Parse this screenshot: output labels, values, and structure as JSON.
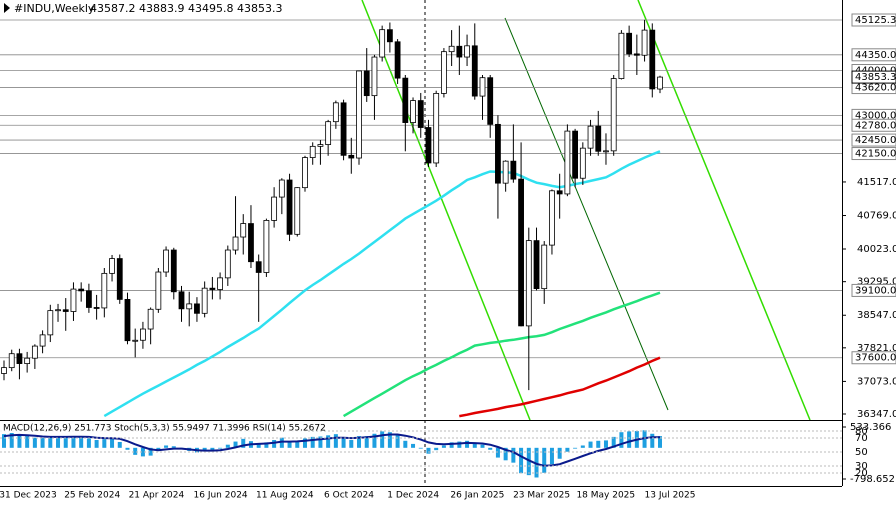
{
  "chart_data": {
    "type": "candlestick",
    "title": "#INDU,Weekly",
    "ohlc_text": "43587.2 43883.9 43495.8 43853.3",
    "ylim": [
      36213,
      45571
    ],
    "yticks": [
      {
        "value": 41517,
        "label": "41517.0"
      },
      {
        "value": 40769,
        "label": "40769.0"
      },
      {
        "value": 40023,
        "label": "40023.0"
      },
      {
        "value": 39295,
        "label": "39295.0"
      },
      {
        "value": 38547,
        "label": "38547.0"
      },
      {
        "value": 37821,
        "label": "37821.0"
      },
      {
        "value": 37073,
        "label": "37073.0"
      },
      {
        "value": 36347,
        "label": "36347.0"
      }
    ],
    "levels": [
      {
        "value": 45125.3,
        "label": "45125.3"
      },
      {
        "value": 44350,
        "label": "44350.0"
      },
      {
        "value": 44000,
        "label": "44000.0"
      },
      {
        "value": 43620,
        "label": "43620.0"
      },
      {
        "value": 43000,
        "label": "43000.0"
      },
      {
        "value": 42780,
        "label": "42780.0"
      },
      {
        "value": 42450,
        "label": "42450.0"
      },
      {
        "value": 42150,
        "label": "42150.0"
      },
      {
        "value": 39100,
        "label": "39100.0"
      },
      {
        "value": 37600,
        "label": "37600.0"
      }
    ],
    "x_labels": [
      "31 Dec 2023",
      "25 Feb 2024",
      "21 Apr 2024",
      "16 Jun 2024",
      "11 Aug 2024",
      "6 Oct 2024",
      "1 Dec 2024",
      "26 Jan 2025",
      "23 Mar 2025",
      "18 May 2025",
      "13 Jul 2025"
    ],
    "candles": [
      [
        37250,
        37540,
        37100,
        37380
      ],
      [
        37380,
        37780,
        37300,
        37690
      ],
      [
        37690,
        37800,
        37120,
        37470
      ],
      [
        37470,
        37730,
        37270,
        37590
      ],
      [
        37590,
        37900,
        37350,
        37860
      ],
      [
        37860,
        38210,
        37700,
        38110
      ],
      [
        38110,
        38780,
        37950,
        38650
      ],
      [
        38650,
        38800,
        38400,
        38670
      ],
      [
        38670,
        38930,
        38200,
        38630
      ],
      [
        38630,
        39280,
        38420,
        39130
      ],
      [
        39130,
        39280,
        38850,
        39090
      ],
      [
        39090,
        39250,
        38600,
        38720
      ],
      [
        38720,
        39000,
        38450,
        38710
      ],
      [
        38710,
        39600,
        38500,
        39480
      ],
      [
        39480,
        39890,
        39300,
        39810
      ],
      [
        39810,
        39900,
        38800,
        38900
      ],
      [
        38900,
        39050,
        37900,
        37980
      ],
      [
        37980,
        38250,
        37610,
        37990
      ],
      [
        37990,
        38400,
        37800,
        38240
      ],
      [
        38240,
        38720,
        37900,
        38680
      ],
      [
        38680,
        39600,
        38600,
        39510
      ],
      [
        39510,
        40080,
        39400,
        40000
      ],
      [
        40000,
        40050,
        38900,
        39070
      ],
      [
        39070,
        39200,
        38400,
        38690
      ],
      [
        38690,
        39070,
        38300,
        38800
      ],
      [
        38800,
        38950,
        38400,
        38590
      ],
      [
        38590,
        39300,
        38500,
        39150
      ],
      [
        39150,
        39400,
        38900,
        39120
      ],
      [
        39120,
        39500,
        38900,
        39380
      ],
      [
        39380,
        40100,
        39200,
        40000
      ],
      [
        40000,
        41200,
        39900,
        40290
      ],
      [
        40290,
        40800,
        39900,
        40590
      ],
      [
        40590,
        41000,
        39600,
        39740
      ],
      [
        39740,
        39900,
        38400,
        39500
      ],
      [
        39500,
        40700,
        39400,
        40660
      ],
      [
        40660,
        41400,
        40500,
        41180
      ],
      [
        41180,
        41600,
        40800,
        41560
      ],
      [
        41560,
        41700,
        40200,
        40350
      ],
      [
        40350,
        41400,
        40300,
        41390
      ],
      [
        41390,
        42100,
        41300,
        42060
      ],
      [
        42060,
        42400,
        41900,
        42310
      ],
      [
        42310,
        42450,
        41900,
        42350
      ],
      [
        42350,
        42900,
        42100,
        42860
      ],
      [
        42860,
        43330,
        42700,
        43280
      ],
      [
        43280,
        43350,
        42000,
        42110
      ],
      [
        42110,
        42500,
        41700,
        42050
      ],
      [
        42050,
        44000,
        41900,
        43990
      ],
      [
        43990,
        44500,
        43300,
        43440
      ],
      [
        43440,
        44350,
        42900,
        44300
      ],
      [
        44300,
        45000,
        44200,
        44910
      ],
      [
        44910,
        45070,
        44400,
        44640
      ],
      [
        44640,
        44700,
        43700,
        43830
      ],
      [
        43830,
        43900,
        42200,
        42840
      ],
      [
        42840,
        43400,
        42600,
        43330
      ],
      [
        43330,
        43500,
        42500,
        42730
      ],
      [
        42730,
        42900,
        41850,
        41940
      ],
      [
        41940,
        43550,
        41850,
        43490
      ],
      [
        43490,
        44500,
        43400,
        44420
      ],
      [
        44420,
        44900,
        44100,
        44540
      ],
      [
        44540,
        45000,
        43900,
        44300
      ],
      [
        44300,
        44800,
        44100,
        44550
      ],
      [
        44550,
        45050,
        43350,
        43430
      ],
      [
        43430,
        43900,
        42900,
        43840
      ],
      [
        43840,
        43900,
        42500,
        42800
      ],
      [
        42800,
        43000,
        40700,
        41490
      ],
      [
        41490,
        42000,
        41300,
        41980
      ],
      [
        41980,
        42800,
        41500,
        41580
      ],
      [
        41580,
        42400,
        38300,
        38310
      ],
      [
        38310,
        40500,
        36880,
        40210
      ],
      [
        40210,
        40500,
        39100,
        39140
      ],
      [
        39140,
        40200,
        38800,
        40110
      ],
      [
        40110,
        41350,
        39900,
        41320
      ],
      [
        41320,
        41700,
        40700,
        41250
      ],
      [
        41250,
        42800,
        41200,
        42650
      ],
      [
        42650,
        42700,
        41400,
        41600
      ],
      [
        41600,
        42400,
        41450,
        42270
      ],
      [
        42270,
        42900,
        42100,
        42760
      ],
      [
        42760,
        43100,
        42100,
        42200
      ],
      [
        42200,
        42600,
        41900,
        42210
      ],
      [
        42210,
        43900,
        42100,
        43820
      ],
      [
        43820,
        44900,
        43800,
        44830
      ],
      [
        44830,
        45000,
        44300,
        44370
      ],
      [
        44370,
        44800,
        43900,
        44340
      ],
      [
        44340,
        45130,
        44200,
        44900
      ],
      [
        44900,
        45050,
        43400,
        43590
      ],
      [
        43587.2,
        43883.9,
        43495.8,
        43853.3
      ]
    ],
    "moving_averages": [
      {
        "color": "#2fe0f0",
        "values": [
          null,
          null,
          null,
          null,
          null,
          null,
          null,
          null,
          null,
          null,
          null,
          null,
          null,
          36300,
          36400,
          36500,
          36600,
          36700,
          36800,
          36890,
          36980,
          37070,
          37160,
          37250,
          37340,
          37440,
          37530,
          37630,
          37730,
          37840,
          37940,
          38040,
          38150,
          38250,
          38390,
          38530,
          38670,
          38820,
          38960,
          39100,
          39220,
          39330,
          39450,
          39570,
          39690,
          39800,
          39920,
          40050,
          40180,
          40310,
          40440,
          40570,
          40700,
          40800,
          40900,
          41000,
          41100,
          41210,
          41330,
          41440,
          41560,
          41620,
          41690,
          41750,
          41740,
          41730,
          41720,
          41650,
          41570,
          41500,
          41470,
          41430,
          41400,
          41430,
          41470,
          41500,
          41540,
          41580,
          41620,
          41710,
          41810,
          41900,
          41980,
          42060,
          42130,
          42200
        ]
      },
      {
        "color": "#22e27a",
        "values": [
          null,
          null,
          null,
          null,
          null,
          null,
          null,
          null,
          null,
          null,
          null,
          null,
          null,
          null,
          null,
          null,
          null,
          null,
          null,
          null,
          null,
          null,
          null,
          null,
          null,
          null,
          null,
          null,
          null,
          null,
          null,
          null,
          null,
          null,
          null,
          null,
          null,
          null,
          null,
          null,
          null,
          null,
          null,
          null,
          36300,
          36400,
          36500,
          36600,
          36700,
          36800,
          36900,
          37000,
          37100,
          37190,
          37270,
          37360,
          37440,
          37530,
          37610,
          37700,
          37780,
          37870,
          37900,
          37930,
          37950,
          37980,
          38000,
          38030,
          38060,
          38080,
          38110,
          38170,
          38240,
          38300,
          38360,
          38420,
          38490,
          38550,
          38610,
          38680,
          38740,
          38800,
          38860,
          38930,
          38990,
          39050
        ]
      },
      {
        "color": "#e00000",
        "values": [
          null,
          null,
          null,
          null,
          null,
          null,
          null,
          null,
          null,
          null,
          null,
          null,
          null,
          null,
          null,
          null,
          null,
          null,
          null,
          null,
          null,
          null,
          null,
          null,
          null,
          null,
          null,
          null,
          null,
          null,
          null,
          null,
          null,
          null,
          null,
          null,
          null,
          null,
          null,
          null,
          null,
          null,
          null,
          null,
          null,
          null,
          null,
          null,
          null,
          null,
          null,
          null,
          null,
          null,
          null,
          null,
          null,
          null,
          null,
          36300,
          36330,
          36370,
          36400,
          36430,
          36460,
          36500,
          36530,
          36560,
          36600,
          36640,
          36680,
          36720,
          36760,
          36810,
          36850,
          36890,
          36960,
          37030,
          37090,
          37160,
          37230,
          37300,
          37380,
          37450,
          37530,
          37600
        ]
      }
    ],
    "indicator": {
      "label": "MACD(12,26,9) 251.773  Stoch(5,3,3) 55.9497 71.3996  RSI(14) 55.2672",
      "ylim": [
        -978,
        687
      ],
      "yticks": [
        533.366,
        -798.652
      ],
      "y2lim": [
        1.4,
        94.3
      ],
      "y2ticks": [
        80,
        70,
        50,
        30,
        20
      ],
      "histogram_color": "#1e9fe0",
      "histogram": [
        350,
        380,
        340,
        300,
        260,
        250,
        280,
        300,
        290,
        300,
        290,
        240,
        200,
        220,
        240,
        150,
        -50,
        -180,
        -220,
        -200,
        -80,
        60,
        40,
        -30,
        -80,
        -120,
        -90,
        -70,
        -20,
        80,
        160,
        230,
        170,
        100,
        140,
        200,
        260,
        160,
        180,
        240,
        280,
        290,
        320,
        350,
        250,
        200,
        300,
        300,
        360,
        420,
        400,
        330,
        180,
        100,
        -20,
        -150,
        -60,
        60,
        140,
        160,
        180,
        100,
        80,
        -50,
        -250,
        -320,
        -380,
        -650,
        -700,
        -760,
        -640,
        -420,
        -280,
        -100,
        -20,
        60,
        160,
        180,
        190,
        280,
        400,
        420,
        430,
        450,
        360,
        300
      ],
      "signal_color": "#0a1a8c",
      "signal": [
        300,
        320,
        330,
        320,
        310,
        290,
        280,
        280,
        280,
        285,
        285,
        280,
        260,
        250,
        245,
        230,
        170,
        90,
        20,
        -40,
        -60,
        -40,
        -20,
        -20,
        -40,
        -60,
        -70,
        -70,
        -60,
        -30,
        10,
        60,
        90,
        100,
        110,
        130,
        160,
        160,
        165,
        180,
        200,
        220,
        240,
        260,
        260,
        250,
        260,
        270,
        290,
        320,
        340,
        340,
        310,
        270,
        210,
        140,
        100,
        90,
        100,
        110,
        125,
        120,
        110,
        80,
        20,
        -50,
        -110,
        -220,
        -320,
        -410,
        -460,
        -450,
        -420,
        -350,
        -280,
        -210,
        -140,
        -80,
        -30,
        30,
        100,
        160,
        210,
        250,
        270,
        270
      ]
    }
  }
}
